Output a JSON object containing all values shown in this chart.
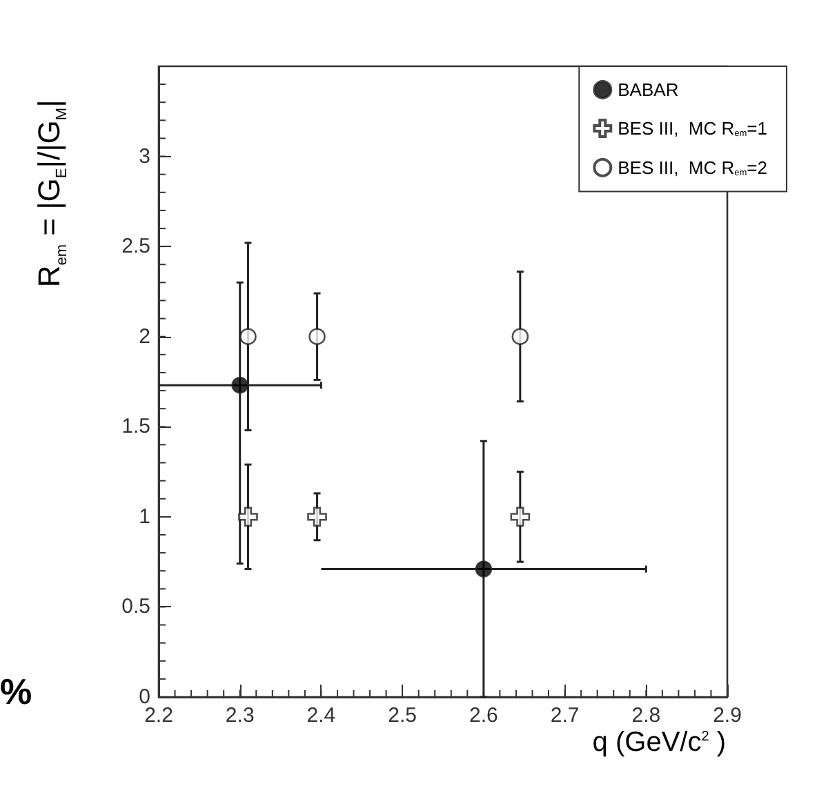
{
  "chart_data": {
    "type": "scatter",
    "xlabel": "q (GeV/c$^{2}$ )",
    "ylabel": "R$_{em}$ = |G$_{E}$|/|G$_{M}$|",
    "xlim": [
      2.2,
      2.9
    ],
    "xticks": [
      2.2,
      2.3,
      2.4,
      2.5,
      2.6,
      2.7,
      2.8,
      2.9
    ],
    "ylim": [
      0,
      3.5
    ],
    "yticks": [
      0,
      0.5,
      1,
      1.5,
      2,
      2.5,
      3
    ],
    "grid": false,
    "legend": "top right",
    "annotations": [
      "%"
    ],
    "series": [
      {
        "name": "BABAR",
        "color": "#000000",
        "marker": "circle",
        "x": [
          2.3,
          2.6
        ],
        "values": [
          1.73,
          0.71
        ],
        "errors": [
          [
            0.74,
            2.3
          ],
          [
            0,
            1.42
          ]
        ],
        "xerrors": [
          [
            2.2,
            2.4
          ],
          [
            2.4,
            2.8
          ]
        ]
      },
      {
        "name": "BES III,  MC R$_{em}$=1",
        "color": "#ffffff",
        "marker": "cross",
        "x": [
          2.31,
          2.395,
          2.645
        ],
        "values": [
          1,
          1,
          1
        ],
        "errors": [
          [
            0.71,
            1.29
          ],
          [
            0.87,
            1.13
          ],
          [
            0.75,
            1.25
          ]
        ]
      },
      {
        "name": "BES III,  MC R$_{em}$=2",
        "color": "#ffffff",
        "marker": "circle",
        "x": [
          2.31,
          2.395,
          2.645
        ],
        "values": [
          2,
          2,
          2
        ],
        "errors": [
          [
            1.48,
            2.52
          ],
          [
            1.76,
            2.24
          ],
          [
            1.64,
            2.36
          ]
        ]
      }
    ]
  }
}
